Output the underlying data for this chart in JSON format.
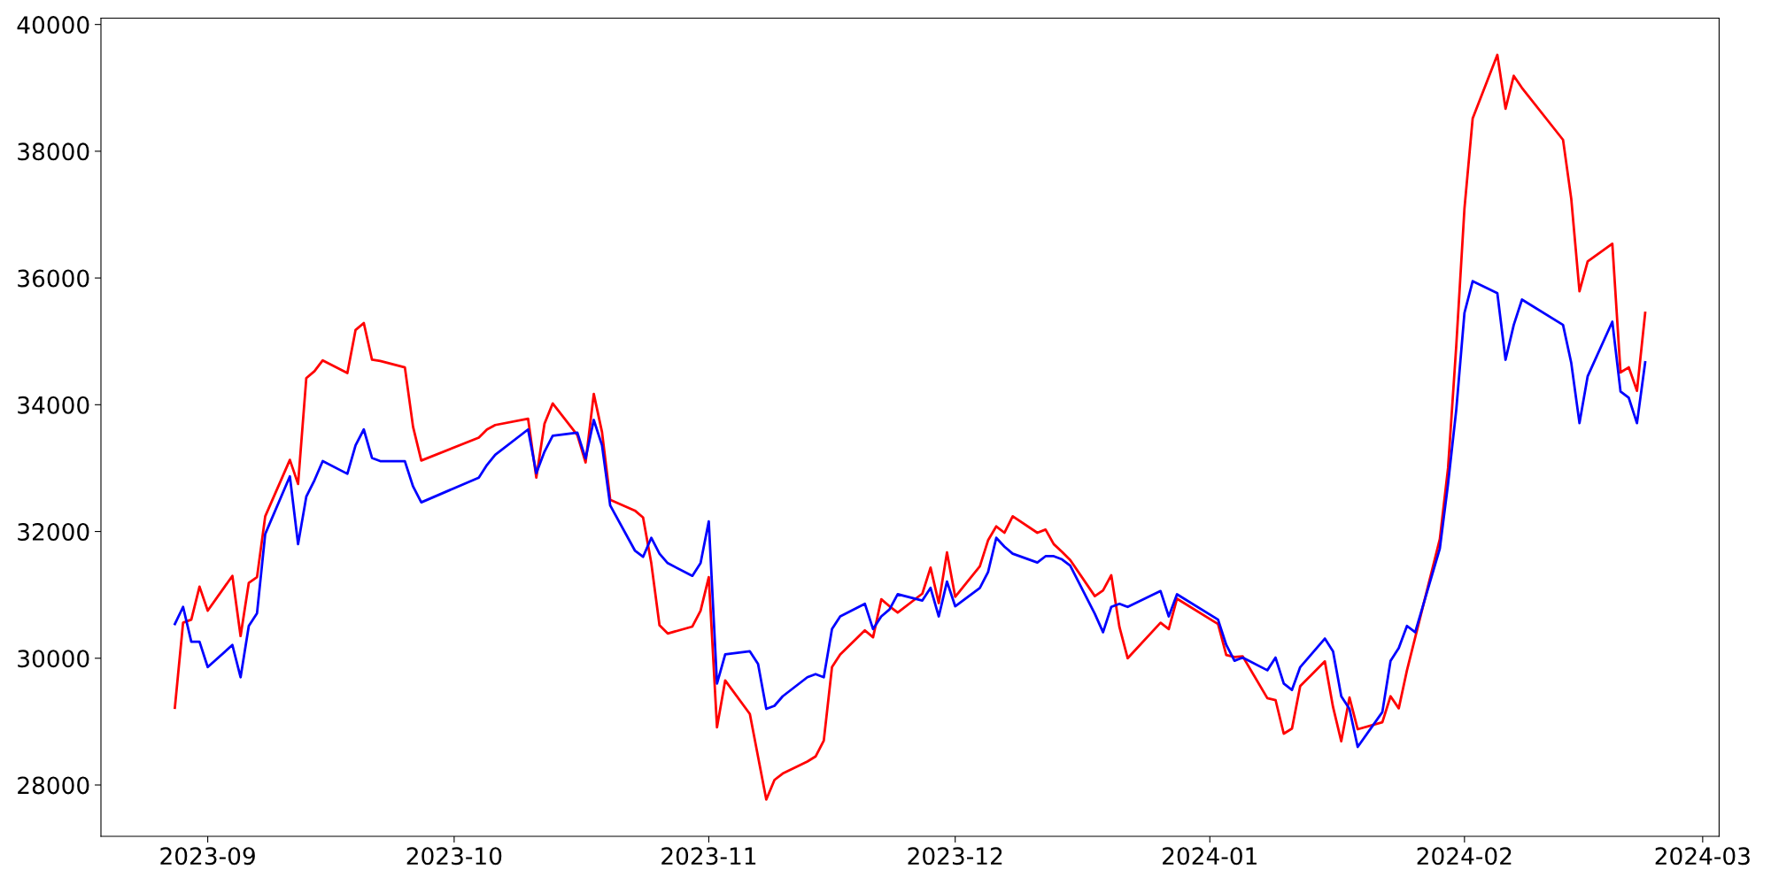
{
  "chart_data": {
    "type": "line",
    "xlim": [
      "2023-08-19",
      "2024-03-03"
    ],
    "xticks": [
      {
        "value": "2023-09-01",
        "label": "2023-09"
      },
      {
        "value": "2023-10-01",
        "label": "2023-10"
      },
      {
        "value": "2023-11-01",
        "label": "2023-11"
      },
      {
        "value": "2023-12-01",
        "label": "2023-12"
      },
      {
        "value": "2024-01-01",
        "label": "2024-01"
      },
      {
        "value": "2024-02-01",
        "label": "2024-02"
      },
      {
        "value": "2024-03-01",
        "label": "2024-03"
      }
    ],
    "ylim": [
      27190,
      40100
    ],
    "yticks": [
      28000,
      30000,
      32000,
      34000,
      36000,
      38000,
      40000
    ],
    "grid": false,
    "marker": "none",
    "line_style": "solid",
    "series": [
      {
        "color": "#ff0000",
        "x": [
          "2023-08-28",
          "2023-08-29",
          "2023-08-30",
          "2023-08-31",
          "2023-09-01",
          "2023-09-04",
          "2023-09-05",
          "2023-09-06",
          "2023-09-07",
          "2023-09-08",
          "2023-09-11",
          "2023-09-12",
          "2023-09-13",
          "2023-09-14",
          "2023-09-15",
          "2023-09-18",
          "2023-09-19",
          "2023-09-20",
          "2023-09-21",
          "2023-09-22",
          "2023-09-25",
          "2023-09-26",
          "2023-09-27",
          "2023-10-04",
          "2023-10-05",
          "2023-10-06",
          "2023-10-10",
          "2023-10-11",
          "2023-10-12",
          "2023-10-13",
          "2023-10-16",
          "2023-10-17",
          "2023-10-18",
          "2023-10-19",
          "2023-10-20",
          "2023-10-23",
          "2023-10-24",
          "2023-10-25",
          "2023-10-26",
          "2023-10-27",
          "2023-10-30",
          "2023-10-31",
          "2023-11-01",
          "2023-11-02",
          "2023-11-03",
          "2023-11-06",
          "2023-11-08",
          "2023-11-09",
          "2023-11-10",
          "2023-11-13",
          "2023-11-14",
          "2023-11-15",
          "2023-11-16",
          "2023-11-17",
          "2023-11-20",
          "2023-11-21",
          "2023-11-22",
          "2023-11-23",
          "2023-11-24",
          "2023-11-27",
          "2023-11-28",
          "2023-11-29",
          "2023-11-30",
          "2023-12-01",
          "2023-12-04",
          "2023-12-05",
          "2023-12-06",
          "2023-12-07",
          "2023-12-08",
          "2023-12-11",
          "2023-12-12",
          "2023-12-13",
          "2023-12-14",
          "2023-12-15",
          "2023-12-18",
          "2023-12-19",
          "2023-12-20",
          "2023-12-21",
          "2023-12-22",
          "2023-12-26",
          "2023-12-27",
          "2023-12-28",
          "2024-01-02",
          "2024-01-03",
          "2024-01-04",
          "2024-01-05",
          "2024-01-08",
          "2024-01-09",
          "2024-01-10",
          "2024-01-11",
          "2024-01-12",
          "2024-01-15",
          "2024-01-16",
          "2024-01-17",
          "2024-01-18",
          "2024-01-19",
          "2024-01-22",
          "2024-01-23",
          "2024-01-24",
          "2024-01-25",
          "2024-01-29",
          "2024-01-30",
          "2024-01-31",
          "2024-02-01",
          "2024-02-02",
          "2024-02-05",
          "2024-02-06",
          "2024-02-07",
          "2024-02-08",
          "2024-02-13",
          "2024-02-14",
          "2024-02-15",
          "2024-02-16",
          "2024-02-19",
          "2024-02-20",
          "2024-02-21",
          "2024-02-22",
          "2024-02-23"
        ],
        "values": [
          29220,
          30560,
          30610,
          31130,
          30750,
          31300,
          30350,
          31190,
          31280,
          32240,
          33130,
          32750,
          34420,
          34530,
          34700,
          34500,
          35180,
          35290,
          34710,
          34690,
          34590,
          33650,
          33120,
          33480,
          33610,
          33680,
          33780,
          32850,
          33700,
          34020,
          33520,
          33090,
          34170,
          33570,
          32500,
          32330,
          32220,
          31500,
          30520,
          30390,
          30500,
          30750,
          31280,
          28910,
          29650,
          29120,
          27770,
          28080,
          28180,
          28370,
          28450,
          28700,
          29860,
          30060,
          30440,
          30330,
          30930,
          30820,
          30720,
          31020,
          31430,
          30870,
          31670,
          30970,
          31450,
          31860,
          32080,
          31980,
          32240,
          31980,
          32030,
          31800,
          31680,
          31550,
          30980,
          31070,
          31310,
          30490,
          30000,
          30560,
          30460,
          30940,
          30540,
          30050,
          30020,
          30030,
          29370,
          29340,
          28810,
          28890,
          29560,
          29950,
          29230,
          28690,
          29380,
          28880,
          28990,
          29400,
          29210,
          29810,
          31880,
          33000,
          34930,
          37100,
          38520,
          39520,
          38670,
          39190,
          39000,
          38180,
          37250,
          35790,
          36260,
          36540,
          34510,
          34590,
          34220,
          35450
        ]
      },
      {
        "color": "#0000ff",
        "x": [
          "2023-08-28",
          "2023-08-29",
          "2023-08-30",
          "2023-08-31",
          "2023-09-01",
          "2023-09-04",
          "2023-09-05",
          "2023-09-06",
          "2023-09-07",
          "2023-09-08",
          "2023-09-11",
          "2023-09-12",
          "2023-09-13",
          "2023-09-14",
          "2023-09-15",
          "2023-09-18",
          "2023-09-19",
          "2023-09-20",
          "2023-09-21",
          "2023-09-22",
          "2023-09-25",
          "2023-09-26",
          "2023-09-27",
          "2023-10-04",
          "2023-10-05",
          "2023-10-06",
          "2023-10-10",
          "2023-10-11",
          "2023-10-12",
          "2023-10-13",
          "2023-10-16",
          "2023-10-17",
          "2023-10-18",
          "2023-10-19",
          "2023-10-20",
          "2023-10-23",
          "2023-10-24",
          "2023-10-25",
          "2023-10-26",
          "2023-10-27",
          "2023-10-30",
          "2023-10-31",
          "2023-11-01",
          "2023-11-02",
          "2023-11-03",
          "2023-11-06",
          "2023-11-07",
          "2023-11-08",
          "2023-11-09",
          "2023-11-10",
          "2023-11-13",
          "2023-11-14",
          "2023-11-15",
          "2023-11-16",
          "2023-11-17",
          "2023-11-20",
          "2023-11-21",
          "2023-11-22",
          "2023-11-23",
          "2023-11-24",
          "2023-11-27",
          "2023-11-28",
          "2023-11-29",
          "2023-11-30",
          "2023-12-01",
          "2023-12-04",
          "2023-12-05",
          "2023-12-06",
          "2023-12-07",
          "2023-12-08",
          "2023-12-11",
          "2023-12-12",
          "2023-12-13",
          "2023-12-14",
          "2023-12-15",
          "2023-12-18",
          "2023-12-19",
          "2023-12-20",
          "2023-12-21",
          "2023-12-22",
          "2023-12-26",
          "2023-12-27",
          "2023-12-28",
          "2024-01-02",
          "2024-01-03",
          "2024-01-04",
          "2024-01-05",
          "2024-01-08",
          "2024-01-09",
          "2024-01-10",
          "2024-01-11",
          "2024-01-12",
          "2024-01-15",
          "2024-01-16",
          "2024-01-17",
          "2024-01-18",
          "2024-01-19",
          "2024-01-22",
          "2024-01-23",
          "2024-01-24",
          "2024-01-25",
          "2024-01-26",
          "2024-01-29",
          "2024-01-30",
          "2024-01-31",
          "2024-02-01",
          "2024-02-02",
          "2024-02-05",
          "2024-02-06",
          "2024-02-07",
          "2024-02-08",
          "2024-02-13",
          "2024-02-14",
          "2024-02-15",
          "2024-02-16",
          "2024-02-19",
          "2024-02-20",
          "2024-02-21",
          "2024-02-22",
          "2024-02-23"
        ],
        "values": [
          30540,
          30810,
          30260,
          30260,
          29860,
          30210,
          29700,
          30510,
          30710,
          31960,
          32870,
          31800,
          32550,
          32810,
          33110,
          32910,
          33360,
          33610,
          33160,
          33110,
          33110,
          32710,
          32460,
          32850,
          33050,
          33210,
          33610,
          32920,
          33260,
          33510,
          33560,
          33150,
          33760,
          33360,
          32410,
          31700,
          31600,
          31900,
          31650,
          31500,
          31300,
          31500,
          32160,
          29600,
          30060,
          30110,
          29910,
          29200,
          29250,
          29400,
          29700,
          29750,
          29700,
          30460,
          30660,
          30860,
          30460,
          30660,
          30770,
          31010,
          30910,
          31110,
          30660,
          31210,
          30820,
          31110,
          31360,
          31900,
          31760,
          31650,
          31510,
          31610,
          31610,
          31560,
          31460,
          30700,
          30410,
          30810,
          30860,
          30810,
          31060,
          30660,
          31010,
          30610,
          30210,
          29960,
          30010,
          29810,
          30010,
          29600,
          29500,
          29860,
          30310,
          30110,
          29400,
          29200,
          28600,
          29150,
          29960,
          30160,
          30510,
          30410,
          31730,
          32750,
          33920,
          35450,
          35950,
          35760,
          34710,
          35260,
          35660,
          35260,
          34660,
          33710,
          34450,
          35310,
          34210,
          34110,
          33710,
          34670
        ]
      }
    ]
  }
}
